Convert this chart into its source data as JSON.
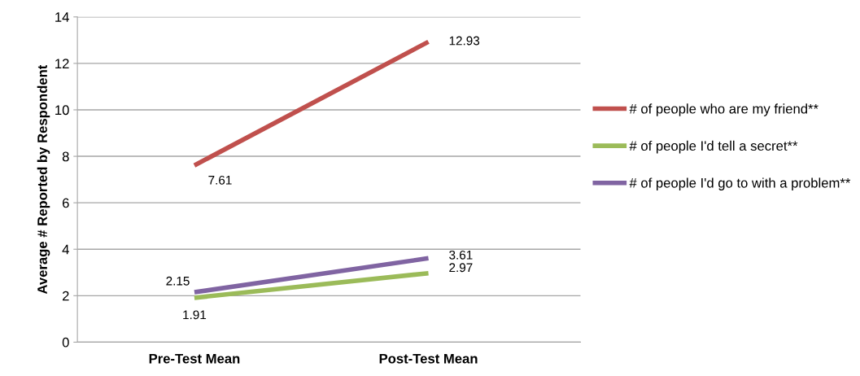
{
  "chart_data": {
    "type": "line",
    "ylabel": "Average # Reported by Respondent",
    "categories": [
      "Pre-Test Mean",
      "Post-Test Mean"
    ],
    "series": [
      {
        "name": "# of people who are my friend**",
        "color": "#c0504d",
        "values": [
          7.61,
          12.93
        ]
      },
      {
        "name": "# of people I'd tell a secret**",
        "color": "#9bbb59",
        "values": [
          1.91,
          2.97
        ]
      },
      {
        "name": "# of people I'd go to with a problem**",
        "color": "#8064a2",
        "values": [
          2.15,
          3.61
        ]
      }
    ],
    "ylim": [
      0,
      14
    ],
    "yticks": [
      0,
      2,
      4,
      6,
      8,
      10,
      12,
      14
    ],
    "grid": "y",
    "legend": "right",
    "data_labels": true,
    "marker": "none",
    "line_style": "solid"
  }
}
